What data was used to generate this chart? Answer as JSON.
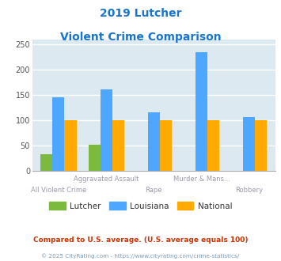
{
  "title_line1": "2019 Lutcher",
  "title_line2": "Violent Crime Comparison",
  "title_color": "#1874cd",
  "categories": [
    "All Violent Crime",
    "Aggravated Assault",
    "Rape",
    "Murder & Mans...",
    "Robbery"
  ],
  "lutcher": [
    33,
    51,
    0,
    0,
    0
  ],
  "louisiana": [
    146,
    161,
    115,
    234,
    106
  ],
  "national": [
    100,
    100,
    100,
    100,
    100
  ],
  "lutcher_color": "#7cba3e",
  "louisiana_color": "#4da6ff",
  "national_color": "#ffaa00",
  "ylim": [
    0,
    260
  ],
  "yticks": [
    0,
    50,
    100,
    150,
    200,
    250
  ],
  "plot_bg": "#dce9f0",
  "grid_color": "#ffffff",
  "bar_width": 0.25,
  "legend_labels": [
    "Lutcher",
    "Louisiana",
    "National"
  ],
  "footnote1": "Compared to U.S. average. (U.S. average equals 100)",
  "footnote1_color": "#cc3300",
  "footnote2": "© 2025 CityRating.com - https://www.cityrating.com/crime-statistics/",
  "footnote2_color": "#7a9ab5",
  "xlabel_top": [
    "",
    "Aggravated Assault",
    "",
    "Murder & Mans...",
    ""
  ],
  "xlabel_bottom": [
    "All Violent Crime",
    "",
    "Rape",
    "",
    "Robbery"
  ],
  "xlabel_color": "#9999aa"
}
